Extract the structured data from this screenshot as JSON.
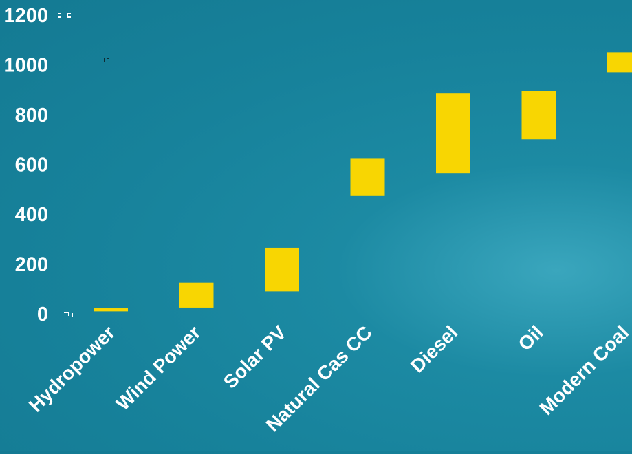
{
  "chart_data": {
    "type": "bar",
    "subtype": "floating-range",
    "categories": [
      "Hydropower",
      "Wind Power",
      "Solar PV",
      "Natural Cas CC",
      "Diesel",
      "Oil",
      "Modern Coal"
    ],
    "series": [
      {
        "ranges": [
          [
            10,
            22
          ],
          [
            25,
            125
          ],
          [
            90,
            265
          ],
          [
            475,
            625
          ],
          [
            565,
            885
          ],
          [
            700,
            895
          ],
          [
            970,
            1050
          ]
        ]
      }
    ],
    "yticks": [
      0,
      200,
      400,
      600,
      800,
      1000,
      1200
    ],
    "ylim": [
      0,
      1200
    ],
    "grid": false,
    "legend": "none",
    "bar_color": "#f8d602",
    "text_color": "#ffffff",
    "background_color": "#17829b"
  }
}
